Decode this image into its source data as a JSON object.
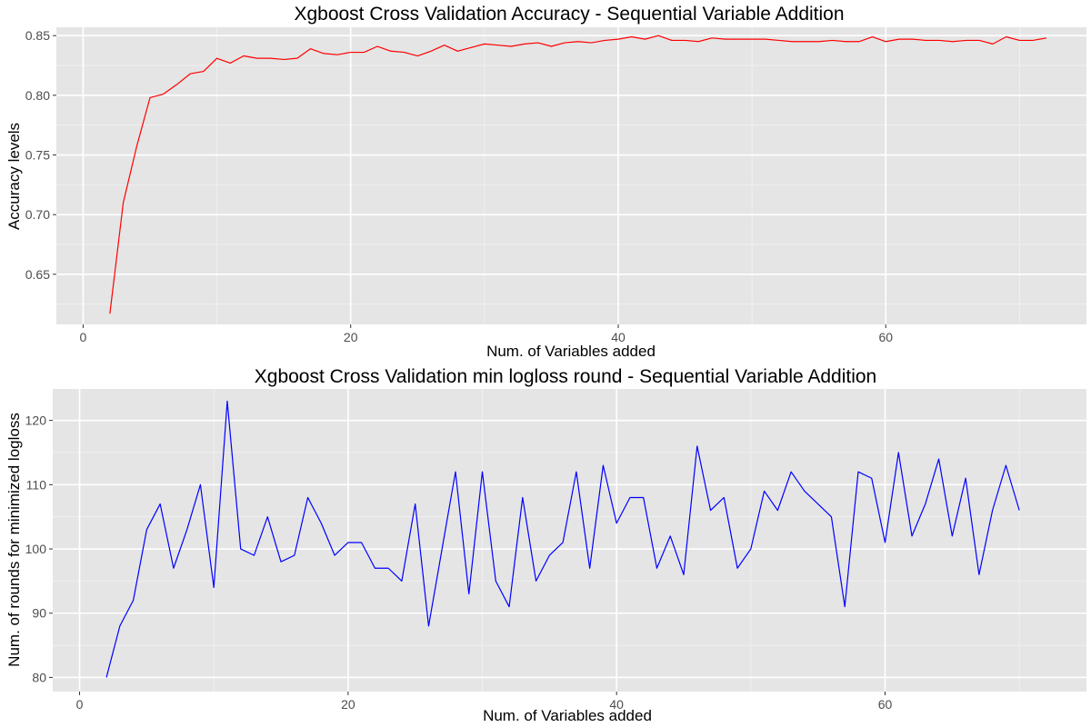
{
  "chart_data": [
    {
      "type": "line",
      "title": "Xgboost Cross Validation Accuracy - Sequential Variable Addition",
      "xlabel": "Num. of Variables added",
      "ylabel": "Accuracy levels",
      "xlim": [
        -2,
        75
      ],
      "ylim": [
        0.608,
        0.857
      ],
      "xticks": [
        0,
        20,
        40,
        60
      ],
      "yticks": [
        0.65,
        0.7,
        0.75,
        0.8,
        0.85
      ],
      "xtick_labels": [
        "0",
        "20",
        "40",
        "60"
      ],
      "ytick_labels": [
        "0.65",
        "0.70",
        "0.75",
        "0.80",
        "0.85"
      ],
      "line_color": "#ff0000",
      "panel_bg": "#e5e5e5",
      "grid": true,
      "series": [
        {
          "x": [
            2,
            3,
            4,
            5,
            6,
            7,
            8,
            9,
            10,
            11,
            12,
            13,
            14,
            15,
            16,
            17,
            18,
            19,
            20,
            21,
            22,
            23,
            24,
            25,
            26,
            27,
            28,
            29,
            30,
            31,
            32,
            33,
            34,
            35,
            36,
            37,
            38,
            39,
            40,
            41,
            42,
            43,
            44,
            45,
            46,
            47,
            48,
            49,
            50,
            51,
            52,
            53,
            54,
            55,
            56,
            57,
            58,
            59,
            60,
            61,
            62,
            63,
            64,
            65,
            66,
            67,
            68,
            69,
            70,
            71,
            72
          ],
          "y": [
            0.617,
            0.71,
            0.757,
            0.798,
            0.801,
            0.809,
            0.818,
            0.82,
            0.831,
            0.827,
            0.833,
            0.831,
            0.831,
            0.83,
            0.831,
            0.839,
            0.835,
            0.834,
            0.836,
            0.836,
            0.841,
            0.837,
            0.836,
            0.833,
            0.837,
            0.842,
            0.837,
            0.84,
            0.843,
            0.842,
            0.841,
            0.843,
            0.844,
            0.841,
            0.844,
            0.845,
            0.844,
            0.846,
            0.847,
            0.849,
            0.847,
            0.85,
            0.846,
            0.846,
            0.845,
            0.848,
            0.847,
            0.847,
            0.847,
            0.847,
            0.846,
            0.845,
            0.845,
            0.845,
            0.846,
            0.845,
            0.845,
            0.849,
            0.845,
            0.847,
            0.847,
            0.846,
            0.846,
            0.845,
            0.846,
            0.846,
            0.843,
            0.849,
            0.846,
            0.846,
            0.848
          ]
        }
      ]
    },
    {
      "type": "line",
      "title": "Xgboost Cross Validation min logloss round - Sequential Variable Addition",
      "xlabel": "Num. of Variables added",
      "ylabel": "Num. of rounds for minimized logloss",
      "xlim": [
        -2,
        75
      ],
      "ylim": [
        77.8,
        124.9
      ],
      "xticks": [
        0,
        20,
        40,
        60
      ],
      "yticks": [
        80,
        90,
        100,
        110,
        120
      ],
      "xtick_labels": [
        "0",
        "20",
        "40",
        "60"
      ],
      "ytick_labels": [
        "80",
        "90",
        "100",
        "110",
        "120"
      ],
      "line_color": "#0000ff",
      "panel_bg": "#e5e5e5",
      "grid": true,
      "series": [
        {
          "x": [
            2,
            3,
            4,
            5,
            6,
            7,
            8,
            9,
            10,
            11,
            12,
            13,
            14,
            15,
            16,
            17,
            18,
            19,
            20,
            21,
            22,
            23,
            24,
            25,
            26,
            27,
            28,
            29,
            30,
            31,
            32,
            33,
            34,
            35,
            36,
            37,
            38,
            39,
            40,
            41,
            42,
            43,
            44,
            45,
            46,
            47,
            48,
            49,
            50,
            51,
            52,
            53,
            54,
            55,
            56,
            57,
            58,
            59,
            60,
            61,
            62,
            63,
            64,
            65,
            66,
            67,
            68,
            69,
            70
          ],
          "y": [
            80,
            88,
            92,
            103,
            107,
            97,
            103,
            110,
            94,
            123,
            100,
            99,
            105,
            98,
            99,
            108,
            104,
            99,
            101,
            101,
            97,
            97,
            95,
            107,
            88,
            100,
            112,
            93,
            112,
            95,
            91,
            108,
            95,
            99,
            101,
            112,
            97,
            113,
            104,
            108,
            108,
            97,
            102,
            96,
            116,
            106,
            108,
            97,
            100,
            109,
            106,
            112,
            109,
            107,
            105,
            91,
            112,
            111,
            101,
            115,
            102,
            107,
            114,
            102,
            111,
            96,
            106,
            113,
            106
          ]
        }
      ]
    }
  ]
}
